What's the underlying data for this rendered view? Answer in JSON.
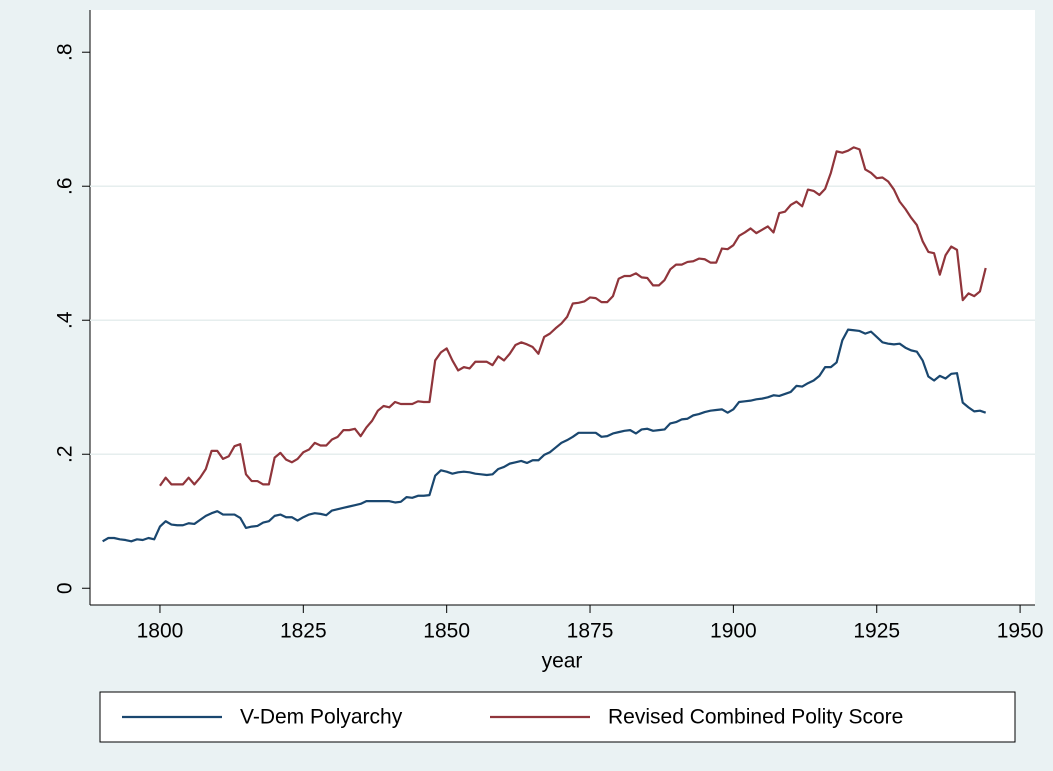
{
  "chart_data": {
    "type": "line",
    "x_label": "year",
    "x": [
      1790,
      1791,
      1792,
      1793,
      1794,
      1795,
      1796,
      1797,
      1798,
      1799,
      1800,
      1801,
      1802,
      1803,
      1804,
      1805,
      1806,
      1807,
      1808,
      1809,
      1810,
      1811,
      1812,
      1813,
      1814,
      1815,
      1816,
      1817,
      1818,
      1819,
      1820,
      1821,
      1822,
      1823,
      1824,
      1825,
      1826,
      1827,
      1828,
      1829,
      1830,
      1831,
      1832,
      1833,
      1834,
      1835,
      1836,
      1837,
      1838,
      1839,
      1840,
      1841,
      1842,
      1843,
      1844,
      1845,
      1846,
      1847,
      1848,
      1849,
      1850,
      1851,
      1852,
      1853,
      1854,
      1855,
      1856,
      1857,
      1858,
      1859,
      1860,
      1861,
      1862,
      1863,
      1864,
      1865,
      1866,
      1867,
      1868,
      1869,
      1870,
      1871,
      1872,
      1873,
      1874,
      1875,
      1876,
      1877,
      1878,
      1879,
      1880,
      1881,
      1882,
      1883,
      1884,
      1885,
      1886,
      1887,
      1888,
      1889,
      1890,
      1891,
      1892,
      1893,
      1894,
      1895,
      1896,
      1897,
      1898,
      1899,
      1900,
      1901,
      1902,
      1903,
      1904,
      1905,
      1906,
      1907,
      1908,
      1909,
      1910,
      1911,
      1912,
      1913,
      1914,
      1915,
      1916,
      1917,
      1918,
      1919,
      1920,
      1921,
      1922,
      1923,
      1924,
      1925,
      1926,
      1927,
      1928,
      1929,
      1930,
      1931,
      1932,
      1933,
      1934,
      1935,
      1936,
      1937,
      1938,
      1939,
      1940,
      1941,
      1942,
      1943,
      1944
    ],
    "series": [
      {
        "name": "V-Dem Polyarchy",
        "color": "#1a476f",
        "values": [
          0.07,
          0.075,
          0.075,
          0.073,
          0.072,
          0.07,
          0.073,
          0.072,
          0.075,
          0.073,
          0.092,
          0.1,
          0.095,
          0.094,
          0.094,
          0.097,
          0.096,
          0.102,
          0.108,
          0.112,
          0.115,
          0.11,
          0.11,
          0.11,
          0.105,
          0.09,
          0.092,
          0.093,
          0.098,
          0.1,
          0.108,
          0.11,
          0.106,
          0.106,
          0.101,
          0.106,
          0.11,
          0.112,
          0.111,
          0.109,
          0.116,
          0.118,
          0.12,
          0.122,
          0.124,
          0.126,
          0.13,
          0.13,
          0.13,
          0.13,
          0.13,
          0.128,
          0.129,
          0.136,
          0.135,
          0.138,
          0.138,
          0.139,
          0.168,
          0.176,
          0.174,
          0.171,
          0.173,
          0.174,
          0.173,
          0.171,
          0.17,
          0.169,
          0.17,
          0.178,
          0.181,
          0.186,
          0.188,
          0.19,
          0.187,
          0.191,
          0.191,
          0.199,
          0.203,
          0.21,
          0.217,
          0.221,
          0.226,
          0.232,
          0.232,
          0.232,
          0.232,
          0.226,
          0.227,
          0.231,
          0.233,
          0.235,
          0.236,
          0.231,
          0.237,
          0.238,
          0.235,
          0.236,
          0.237,
          0.246,
          0.248,
          0.252,
          0.253,
          0.258,
          0.26,
          0.263,
          0.265,
          0.266,
          0.267,
          0.262,
          0.267,
          0.278,
          0.279,
          0.28,
          0.282,
          0.283,
          0.285,
          0.288,
          0.287,
          0.29,
          0.293,
          0.302,
          0.301,
          0.306,
          0.31,
          0.317,
          0.33,
          0.33,
          0.337,
          0.37,
          0.386,
          0.385,
          0.384,
          0.38,
          0.383,
          0.375,
          0.367,
          0.365,
          0.364,
          0.365,
          0.359,
          0.355,
          0.353,
          0.34,
          0.316,
          0.31,
          0.317,
          0.313,
          0.32,
          0.321,
          0.277,
          0.27,
          0.264,
          0.265,
          0.262
        ]
      },
      {
        "name": "Revised Combined Polity Score",
        "color": "#90353b",
        "values": [
          null,
          null,
          null,
          null,
          null,
          null,
          null,
          null,
          null,
          null,
          0.153,
          0.165,
          0.155,
          0.155,
          0.155,
          0.165,
          0.155,
          0.165,
          0.178,
          0.205,
          0.205,
          0.193,
          0.197,
          0.212,
          0.215,
          0.17,
          0.16,
          0.16,
          0.155,
          0.155,
          0.195,
          0.202,
          0.192,
          0.188,
          0.193,
          0.203,
          0.207,
          0.217,
          0.213,
          0.213,
          0.222,
          0.226,
          0.236,
          0.236,
          0.238,
          0.227,
          0.24,
          0.25,
          0.265,
          0.272,
          0.27,
          0.278,
          0.275,
          0.275,
          0.275,
          0.279,
          0.278,
          0.278,
          0.34,
          0.352,
          0.358,
          0.34,
          0.325,
          0.33,
          0.328,
          0.338,
          0.338,
          0.338,
          0.333,
          0.346,
          0.34,
          0.35,
          0.363,
          0.367,
          0.364,
          0.36,
          0.35,
          0.375,
          0.38,
          0.388,
          0.395,
          0.405,
          0.425,
          0.426,
          0.428,
          0.434,
          0.433,
          0.427,
          0.427,
          0.436,
          0.462,
          0.466,
          0.466,
          0.47,
          0.464,
          0.463,
          0.452,
          0.452,
          0.46,
          0.476,
          0.483,
          0.483,
          0.487,
          0.488,
          0.492,
          0.491,
          0.486,
          0.486,
          0.507,
          0.506,
          0.512,
          0.526,
          0.531,
          0.537,
          0.53,
          0.535,
          0.54,
          0.531,
          0.56,
          0.562,
          0.572,
          0.577,
          0.57,
          0.595,
          0.593,
          0.587,
          0.596,
          0.62,
          0.652,
          0.65,
          0.653,
          0.658,
          0.655,
          0.625,
          0.62,
          0.612,
          0.613,
          0.607,
          0.595,
          0.577,
          0.566,
          0.553,
          0.542,
          0.518,
          0.502,
          0.5,
          0.468,
          0.497,
          0.51,
          0.505,
          0.43,
          0.44,
          0.436,
          0.443,
          0.478
        ]
      }
    ],
    "xlim": [
      1787.8,
      1952.6
    ],
    "xticks": [
      1800,
      1825,
      1850,
      1875,
      1900,
      1925,
      1950
    ],
    "ylim": [
      -0.025,
      0.863
    ],
    "yticks": [
      0,
      {
        "value": 0.2,
        "label": ".2"
      },
      {
        "value": 0.4,
        "label": ".4"
      },
      {
        "value": 0.6,
        "label": ".6"
      },
      {
        "value": 0.8,
        "label": ".8"
      }
    ],
    "grid": true,
    "legend": "bottom"
  }
}
